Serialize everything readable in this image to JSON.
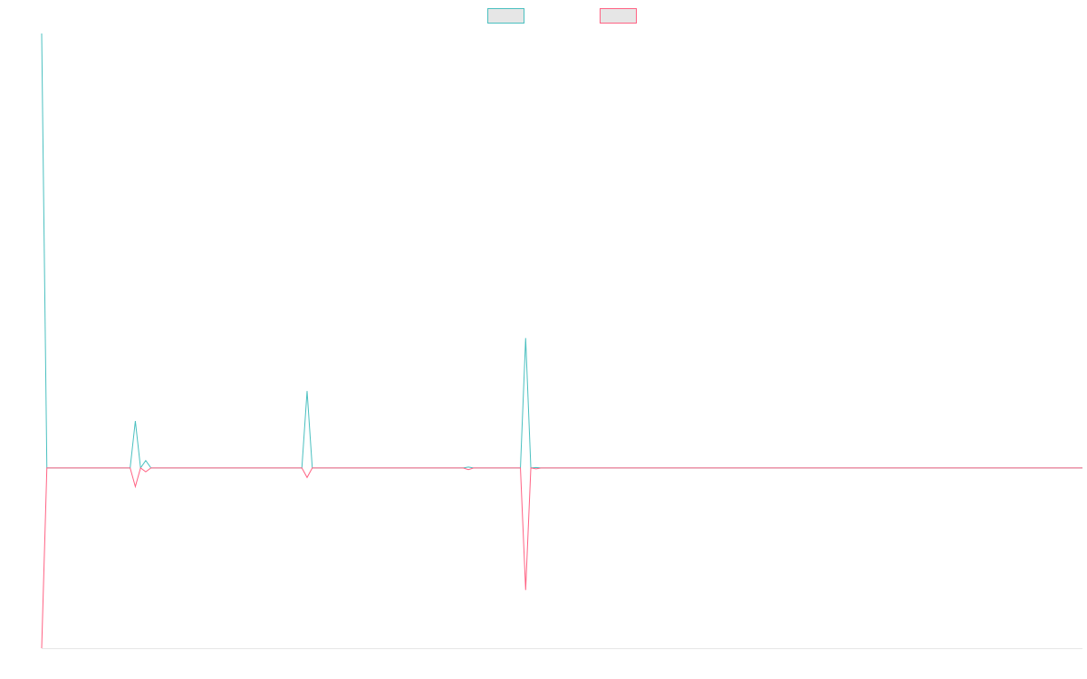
{
  "chart_data": {
    "type": "line",
    "title": "",
    "xlabel": "",
    "ylabel": "",
    "grid": false,
    "legend_placement": "top",
    "x": [
      0,
      1,
      17,
      18,
      19,
      20,
      21,
      50,
      51,
      52,
      81,
      82,
      83,
      92,
      93,
      94,
      95,
      96,
      200
    ],
    "series": [
      {
        "name": "",
        "color": "#4bc0c0",
        "values": [
          1000,
          0,
          0,
          108,
          0,
          17,
          0,
          0,
          177,
          0,
          0,
          2,
          0,
          0,
          299,
          0,
          1,
          0,
          0
        ]
      },
      {
        "name": "",
        "color": "#ff6384",
        "values": [
          -415,
          0,
          0,
          -43,
          0,
          -9,
          0,
          0,
          -22,
          0,
          0,
          -4,
          0,
          0,
          -281,
          0,
          -2,
          0,
          0
        ]
      }
    ],
    "xlim": [
      0,
      200
    ],
    "ylim": [
      -415,
      1000
    ]
  }
}
